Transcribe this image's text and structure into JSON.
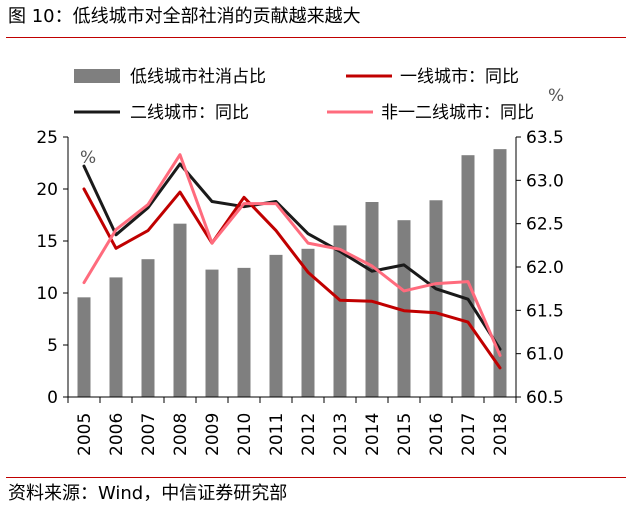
{
  "title": "图 10：低线城市对全部社消的贡献越来越大",
  "source": "资料来源：Wind，中信证券研究部",
  "chart_data": {
    "type": "bar+line",
    "categories": [
      "2005",
      "2006",
      "2007",
      "2008",
      "2009",
      "2010",
      "2011",
      "2012",
      "2013",
      "2014",
      "2015",
      "2016",
      "2017",
      "2018"
    ],
    "left_axis": {
      "unit": "%",
      "ylim": [
        0,
        25
      ],
      "ticks": [
        "0",
        "5",
        "10",
        "15",
        "20",
        "25"
      ]
    },
    "right_axis": {
      "unit": "%",
      "ylim": [
        60.5,
        63.5
      ],
      "ticks": [
        "60.5",
        "61.0",
        "61.5",
        "62.0",
        "62.5",
        "63.0",
        "63.5"
      ]
    },
    "series": [
      {
        "name": "低线城市社消占比",
        "kind": "bar",
        "axis": "right",
        "color": "#7f7f7f",
        "values": [
          61.65,
          61.88,
          62.09,
          62.5,
          61.97,
          61.99,
          62.14,
          62.21,
          62.48,
          62.75,
          62.54,
          62.77,
          63.29,
          63.36
        ]
      },
      {
        "name": "一线城市：同比",
        "kind": "line",
        "axis": "left",
        "color": "#c00000",
        "values": [
          20.0,
          14.3,
          16.0,
          19.7,
          14.8,
          19.2,
          16.0,
          12.0,
          9.3,
          9.2,
          8.3,
          8.1,
          7.2,
          2.8
        ]
      },
      {
        "name": "二线城市：同比",
        "kind": "line",
        "axis": "left",
        "color": "#1a1a1a",
        "values": [
          22.2,
          15.6,
          18.2,
          22.4,
          18.8,
          18.3,
          18.8,
          15.7,
          14.0,
          12.1,
          12.7,
          10.4,
          9.4,
          4.6
        ]
      },
      {
        "name": "非一二线城市：同比",
        "kind": "line",
        "axis": "left",
        "color": "#ff6b7d",
        "values": [
          11.0,
          16.1,
          18.5,
          23.3,
          14.8,
          18.6,
          18.6,
          14.8,
          14.2,
          12.6,
          10.2,
          10.9,
          11.1,
          4.0
        ]
      }
    ]
  }
}
